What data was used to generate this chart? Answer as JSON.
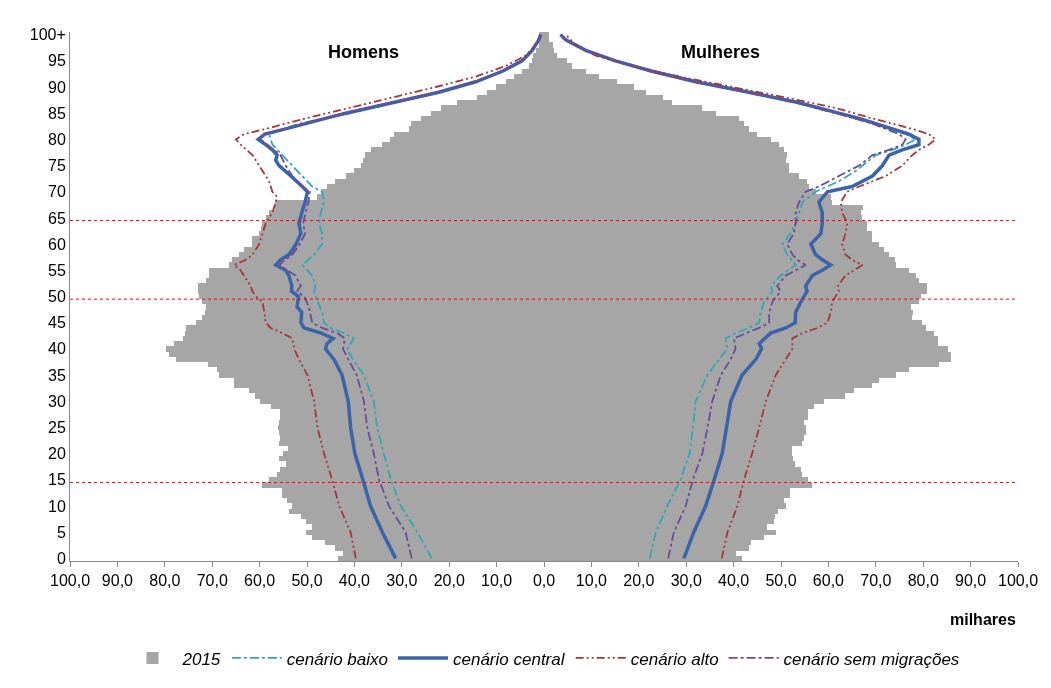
{
  "chart_data": {
    "type": "bar",
    "orientation": "horizontal",
    "stacked": true,
    "x": [
      0,
      1,
      2,
      3,
      4,
      5,
      6,
      7,
      8,
      9,
      10,
      11,
      12,
      13,
      14,
      15,
      16,
      17,
      18,
      19,
      20,
      21,
      22,
      23,
      24,
      25,
      26,
      27,
      28,
      29,
      30,
      31,
      32,
      33,
      34,
      35,
      36,
      37,
      38,
      39,
      40,
      41,
      42,
      43,
      44,
      45,
      46,
      47,
      48,
      49,
      50,
      51,
      52,
      53,
      54,
      55,
      56,
      57,
      58,
      59,
      60,
      61,
      62,
      63,
      64,
      65,
      66,
      67,
      68,
      69,
      70,
      71,
      72,
      73,
      74,
      75,
      76,
      77,
      78,
      79,
      80,
      81,
      82,
      83,
      84,
      85,
      86,
      87,
      88,
      89,
      90,
      91,
      92,
      93,
      94,
      95,
      96,
      97,
      98,
      99,
      100
    ],
    "xlabel": "milhares",
    "annotations": [
      "Homens",
      "Mulheres"
    ],
    "xlim": [
      -100,
      100
    ],
    "xticks": [
      {
        "value": -100,
        "label": "100,0"
      },
      {
        "value": -90,
        "label": "90,0"
      },
      {
        "value": -80,
        "label": "80,0"
      },
      {
        "value": -70,
        "label": "70,0"
      },
      {
        "value": -60,
        "label": "60,0"
      },
      {
        "value": -50,
        "label": "50,0"
      },
      {
        "value": -40,
        "label": "40,0"
      },
      {
        "value": -30,
        "label": "30,0"
      },
      {
        "value": -20,
        "label": "20,0"
      },
      {
        "value": -10,
        "label": "10,0"
      },
      {
        "value": 0,
        "label": "0,0"
      },
      {
        "value": 10,
        "label": "10,0"
      },
      {
        "value": 20,
        "label": "20,0"
      },
      {
        "value": 30,
        "label": "30,0"
      },
      {
        "value": 40,
        "label": "40,0"
      },
      {
        "value": 50,
        "label": "50,0"
      },
      {
        "value": 60,
        "label": "60,0"
      },
      {
        "value": 70,
        "label": "70,0"
      },
      {
        "value": 80,
        "label": "80,0"
      },
      {
        "value": 90,
        "label": "90,0"
      },
      {
        "value": 100,
        "label": "100,0"
      }
    ],
    "ylim": [
      -0.5,
      100.5
    ],
    "yticks": [
      0,
      5,
      10,
      15,
      20,
      25,
      30,
      35,
      40,
      45,
      50,
      55,
      60,
      65,
      70,
      75,
      80,
      85,
      90,
      95,
      {
        "value": 100,
        "label": "100+"
      }
    ],
    "legend": "bottom",
    "ref_lines": [
      {
        "axis": "y",
        "value": 14.5,
        "color": "#ff0000",
        "line_style": "dotted"
      },
      {
        "axis": "y",
        "value": 49.5,
        "color": "#ff0000",
        "line_style": "dotted"
      },
      {
        "axis": "y",
        "value": 64.5,
        "color": "#ff0000",
        "line_style": "dotted"
      }
    ],
    "series": [
      {
        "name": "2015",
        "color": "#a6a6a6",
        "values": [
          -43.5,
          -42.4,
          -44.0,
          -46.1,
          -48.9,
          -50.3,
          -48.9,
          -50.3,
          -51.3,
          -53.8,
          -53.1,
          -54.2,
          -55.2,
          -55.2,
          -59.5,
          -58.0,
          -56.3,
          -55.6,
          -54.5,
          -55.9,
          -55.0,
          -54.0,
          -55.9,
          -55.6,
          -55.9,
          -56.1,
          -55.9,
          -55.6,
          -55.6,
          -57.5,
          -60.0,
          -61.0,
          -62.2,
          -65.3,
          -65.3,
          -68.6,
          -69.0,
          -70.8,
          -77.6,
          -79.1,
          -79.7,
          -78.1,
          -76.2,
          -75.7,
          -75.6,
          -73.5,
          -72.1,
          -71.5,
          -71.4,
          -72.1,
          -72.8,
          -73.1,
          -73.1,
          -71.4,
          -70.7,
          -70.7,
          -66.5,
          -65.8,
          -64.3,
          -63.3,
          -61.7,
          -61.5,
          -60.1,
          -59.8,
          -59.4,
          -58.7,
          -58.0,
          -56.7,
          -56.7,
          -47.8,
          -47.0,
          -45.7,
          -44.0,
          -41.8,
          -40.1,
          -38.7,
          -38.2,
          -37.8,
          -36.6,
          -34.1,
          -32.5,
          -31.6,
          -28.5,
          -28.1,
          -26.0,
          -23.9,
          -21.8,
          -18.3,
          -14.1,
          -12.0,
          -10.2,
          -8.1,
          -6.3,
          -4.6,
          -3.2,
          -2.5,
          -2.3,
          -1.6,
          -1.1,
          -0.8,
          -1.0
        ]
      },
      {
        "color": "#a6a6a6",
        "values": [
          41.7,
          40.4,
          43.2,
          43.6,
          46.5,
          48.9,
          47.1,
          48.5,
          48.7,
          49.4,
          51.0,
          50.6,
          51.8,
          52.0,
          56.6,
          55.8,
          54.5,
          54.2,
          53.0,
          52.5,
          52.4,
          52.3,
          54.5,
          54.9,
          55.2,
          55.2,
          54.9,
          55.8,
          55.8,
          57.0,
          59.1,
          63.5,
          65.4,
          69.3,
          70.7,
          74.2,
          77.0,
          83.3,
          85.8,
          85.8,
          85.3,
          83.2,
          83.2,
          82.3,
          80.5,
          79.7,
          77.7,
          77.9,
          77.4,
          79.1,
          79.5,
          80.9,
          80.7,
          79.1,
          78.4,
          77.0,
          74.2,
          74.0,
          72.8,
          71.7,
          70.7,
          69.3,
          69.3,
          68.2,
          68.2,
          67.0,
          66.8,
          67.2,
          60.8,
          60.5,
          57.4,
          55.9,
          55.5,
          53.8,
          51.7,
          51.7,
          51.0,
          51.3,
          50.6,
          49.6,
          47.8,
          45.0,
          43.2,
          42.2,
          41.1,
          36.2,
          33.4,
          27.1,
          25.0,
          21.5,
          19.0,
          15.5,
          11.6,
          8.8,
          6.0,
          4.9,
          2.8,
          2.1,
          1.8,
          1.1,
          1.1
        ]
      },
      {
        "name": "cenário baixo",
        "type": "line",
        "color": "#31a6b8",
        "line_style": "dashed",
        "x": [
          0,
          5,
          10,
          15,
          20,
          25,
          30,
          35,
          38,
          40,
          42,
          43,
          44,
          45,
          47,
          50,
          51,
          52,
          54,
          56,
          58,
          60,
          62,
          64,
          66,
          68,
          70,
          71,
          73,
          75,
          77,
          79,
          81,
          83,
          85,
          87,
          89,
          91,
          93,
          95,
          97,
          99,
          100
        ],
        "values": [
          -23.7,
          -26.7,
          -30.2,
          -32.3,
          -33.8,
          -35.2,
          -35.9,
          -38.0,
          -40.3,
          -41.5,
          -40.1,
          -42.2,
          -45.0,
          -46.4,
          -46.8,
          -48.2,
          -48.5,
          -48.2,
          -48.9,
          -51.0,
          -48.5,
          -46.8,
          -46.8,
          -47.5,
          -47.1,
          -46.4,
          -46.8,
          -48.9,
          -51.0,
          -53.1,
          -55.2,
          -57.3,
          -58.0,
          -51.7,
          -41.0,
          -31.5,
          -22.0,
          -14.2,
          -8.6,
          -4.5,
          -2.4,
          -1.1,
          -0.7
        ]
      },
      {
        "type": "line",
        "color": "#31a6b8",
        "line_style": "dashed",
        "x": [
          0,
          5,
          10,
          15,
          20,
          25,
          30,
          35,
          38,
          40,
          42,
          43,
          44,
          45,
          47,
          49,
          51,
          52,
          54,
          56,
          58,
          60,
          62,
          64,
          66,
          68,
          70,
          72,
          74,
          76,
          77,
          78,
          79,
          80,
          81,
          82,
          83,
          85,
          87,
          89,
          91,
          93,
          95,
          97,
          99,
          100
        ],
        "values": [
          22.3,
          23.6,
          26.0,
          28.8,
          30.7,
          31.4,
          32.0,
          34.5,
          36.9,
          38.7,
          38.3,
          40.4,
          43.2,
          45.4,
          45.7,
          46.4,
          48.2,
          47.9,
          49.9,
          53.1,
          51.3,
          50.3,
          52.0,
          53.1,
          53.8,
          54.5,
          57.3,
          62.2,
          65.8,
          68.6,
          70.0,
          73.5,
          76.3,
          78.4,
          76.3,
          72.8,
          69.6,
          61.8,
          53.4,
          42.9,
          31.8,
          22.6,
          15.0,
          8.7,
          4.5,
          3.4
        ]
      },
      {
        "name": "cenário central",
        "type": "line",
        "color": "#3a64a8",
        "line_style": "solid",
        "x": [
          0,
          5,
          10,
          15,
          20,
          25,
          30,
          35,
          38,
          40,
          41,
          42,
          43,
          44,
          45,
          47,
          48,
          50,
          51,
          52,
          54,
          55,
          56,
          57,
          58,
          60,
          62,
          64,
          66,
          68,
          70,
          71,
          73,
          75,
          76,
          77,
          78,
          79,
          80,
          81,
          82,
          83,
          84,
          85,
          87,
          89,
          91,
          93,
          95,
          97,
          99,
          100
        ],
        "values": [
          -31.3,
          -34.1,
          -36.6,
          -38.2,
          -39.9,
          -40.8,
          -41.3,
          -42.6,
          -44.3,
          -46.1,
          -45.8,
          -44.5,
          -47.0,
          -50.6,
          -51.3,
          -51.1,
          -52.1,
          -51.8,
          -53.3,
          -53.2,
          -53.8,
          -54.5,
          -56.6,
          -55.6,
          -53.8,
          -52.3,
          -51.3,
          -51.7,
          -51.1,
          -50.4,
          -49.9,
          -51.0,
          -53.4,
          -55.9,
          -56.6,
          -56.3,
          -57.3,
          -58.7,
          -60.3,
          -58.9,
          -54.5,
          -50.3,
          -46.1,
          -41.8,
          -32.0,
          -22.2,
          -14.4,
          -8.8,
          -4.6,
          -2.5,
          -1.1,
          -0.7
        ]
      },
      {
        "type": "line",
        "color": "#3a64a8",
        "line_style": "solid",
        "x": [
          0,
          5,
          10,
          15,
          20,
          25,
          30,
          35,
          38,
          40,
          41,
          43,
          44,
          45,
          47,
          49,
          51,
          52,
          54,
          55,
          56,
          57,
          58,
          60,
          62,
          64,
          66,
          68,
          70,
          71,
          73,
          75,
          77,
          78,
          79,
          80,
          81,
          82,
          83,
          84,
          85,
          87,
          89,
          91,
          93,
          95,
          97,
          99,
          100
        ],
        "values": [
          29.5,
          31.6,
          34.1,
          35.9,
          37.6,
          38.5,
          39.4,
          41.8,
          44.7,
          45.9,
          45.4,
          47.8,
          51.0,
          53.0,
          53.1,
          54.2,
          55.5,
          55.2,
          56.6,
          58.7,
          60.5,
          58.7,
          57.3,
          56.3,
          58.4,
          58.7,
          58.7,
          58.0,
          59.8,
          65.0,
          69.3,
          71.4,
          72.8,
          75.6,
          79.1,
          79.1,
          77.0,
          73.5,
          70.0,
          66.5,
          62.2,
          53.8,
          43.2,
          32.0,
          22.8,
          15.1,
          8.8,
          4.6,
          3.5
        ]
      },
      {
        "name": "cenário alto",
        "type": "line",
        "color": "#a93434",
        "line_style": "dotted",
        "x": [
          0,
          5,
          10,
          15,
          20,
          25,
          30,
          35,
          38,
          40,
          42,
          43,
          44,
          45,
          47,
          49,
          50,
          51,
          52,
          54,
          55,
          56,
          57,
          58,
          60,
          62,
          64,
          66,
          68,
          69,
          70,
          72,
          75,
          77,
          79,
          80,
          81,
          82,
          84,
          86,
          88,
          90,
          92,
          94,
          96,
          98,
          100
        ],
        "values": [
          -39.7,
          -40.8,
          -43.2,
          -44.7,
          -46.4,
          -47.8,
          -48.5,
          -49.9,
          -51.7,
          -52.7,
          -53.1,
          -55.2,
          -57.7,
          -58.7,
          -59.0,
          -59.4,
          -60.8,
          -61.5,
          -61.9,
          -63.3,
          -64.0,
          -65.4,
          -62.9,
          -61.5,
          -60.1,
          -59.4,
          -58.7,
          -57.3,
          -56.6,
          -56.3,
          -57.3,
          -58.0,
          -60.1,
          -61.5,
          -64.0,
          -65.0,
          -63.3,
          -58.7,
          -50.3,
          -41.1,
          -32.0,
          -22.8,
          -14.4,
          -8.1,
          -3.9,
          -1.8,
          -0.7
        ]
      },
      {
        "type": "line",
        "color": "#a93434",
        "line_style": "dotted",
        "x": [
          0,
          5,
          10,
          15,
          20,
          25,
          30,
          35,
          38,
          40,
          42,
          43,
          44,
          45,
          47,
          49,
          51,
          52,
          54,
          56,
          57,
          58,
          60,
          62,
          64,
          66,
          68,
          70,
          71,
          73,
          75,
          77,
          78,
          79,
          80,
          81,
          82,
          83,
          84,
          86,
          88,
          90,
          92,
          94,
          96,
          98,
          100
        ],
        "values": [
          37.5,
          38.7,
          40.8,
          42.2,
          43.9,
          45.4,
          46.8,
          48.9,
          51.0,
          52.4,
          52.4,
          54.5,
          57.7,
          59.8,
          60.5,
          60.8,
          62.2,
          62.0,
          63.6,
          67.2,
          65.0,
          63.6,
          62.9,
          63.6,
          64.0,
          62.9,
          62.6,
          64.0,
          66.5,
          72.1,
          75.6,
          77.7,
          79.1,
          81.2,
          82.6,
          81.2,
          77.7,
          73.5,
          69.3,
          61.5,
          51.0,
          39.7,
          28.5,
          18.6,
          10.9,
          6.7,
          4.6
        ]
      },
      {
        "name": "cenário sem migrações",
        "type": "line",
        "color": "#6b4c9a",
        "line_style": "dashed",
        "x": [
          0,
          5,
          10,
          15,
          20,
          25,
          30,
          35,
          38,
          40,
          42,
          43,
          44,
          45,
          48,
          50,
          51,
          52,
          54,
          56,
          57,
          58,
          60,
          62,
          64,
          66,
          68,
          70,
          71,
          73,
          75,
          77,
          79,
          80,
          81,
          83,
          85,
          87,
          89,
          91,
          93,
          95,
          97,
          99,
          100
        ],
        "values": [
          -27.9,
          -29.2,
          -32.7,
          -34.8,
          -35.9,
          -37.3,
          -38.0,
          -39.5,
          -41.3,
          -42.4,
          -42.0,
          -43.6,
          -46.8,
          -48.9,
          -49.6,
          -50.6,
          -52.1,
          -51.3,
          -52.4,
          -55.9,
          -54.6,
          -53.1,
          -51.5,
          -50.4,
          -50.8,
          -50.3,
          -49.7,
          -49.4,
          -51.1,
          -53.1,
          -54.5,
          -55.6,
          -58.4,
          -59.8,
          -58.9,
          -50.5,
          -42.0,
          -32.2,
          -22.3,
          -14.5,
          -8.9,
          -4.7,
          -2.5,
          -1.1,
          -0.7
        ]
      },
      {
        "type": "line",
        "color": "#6b4c9a",
        "line_style": "dashed",
        "x": [
          0,
          5,
          10,
          15,
          20,
          25,
          30,
          35,
          38,
          40,
          42,
          43,
          44,
          45,
          47,
          49,
          51,
          52,
          54,
          56,
          57,
          58,
          60,
          62,
          64,
          66,
          68,
          70,
          71,
          73,
          75,
          77,
          78,
          79,
          80,
          81,
          82,
          83,
          85,
          87,
          89,
          91,
          93,
          95,
          97,
          99,
          100
        ],
        "values": [
          26.2,
          27.4,
          29.9,
          31.4,
          33.4,
          34.5,
          35.5,
          37.3,
          39.4,
          40.4,
          40.1,
          42.6,
          45.4,
          47.5,
          47.5,
          48.2,
          49.9,
          49.2,
          51.0,
          55.2,
          53.4,
          52.4,
          51.3,
          52.7,
          53.1,
          53.1,
          53.8,
          55.2,
          58.0,
          62.2,
          66.5,
          69.3,
          72.8,
          75.6,
          76.3,
          74.9,
          72.1,
          69.3,
          61.5,
          53.2,
          42.8,
          31.7,
          22.5,
          14.9,
          8.7,
          4.5,
          3.4
        ]
      }
    ]
  }
}
